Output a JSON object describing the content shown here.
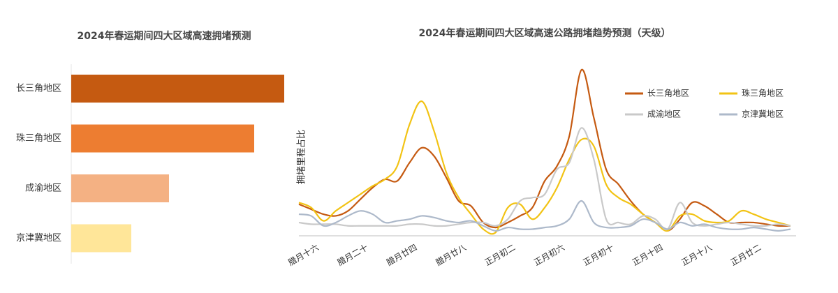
{
  "chart_data": [
    {
      "type": "bar",
      "orientation": "horizontal",
      "title": "2024年春运期间四大区域高速拥堵预测",
      "categories": [
        "长三角地区",
        "珠三角地区",
        "成渝地区",
        "京津冀地区"
      ],
      "values": [
        305,
        262,
        140,
        86
      ],
      "colors": [
        "#c55a11",
        "#ed7d31",
        "#f4b183",
        "#ffe699"
      ]
    },
    {
      "type": "line",
      "title": "2024年春运期间四大区域高速公路拥堵趋势预测（天级）",
      "y_label": "拥堵里程占比",
      "categories": [
        null,
        "腊月十六",
        null,
        null,
        null,
        "腊月二十",
        null,
        null,
        null,
        "腊月廿四",
        null,
        null,
        null,
        "腊月廿八",
        null,
        null,
        null,
        "正月初二",
        null,
        null,
        null,
        "正月初六",
        null,
        null,
        null,
        "正月初十",
        null,
        null,
        null,
        "正月十四",
        null,
        null,
        null,
        "正月十八",
        null,
        null,
        null,
        "正月廿二",
        null,
        null,
        null
      ],
      "legend": "top-right",
      "series": [
        {
          "name": "长三角地区",
          "color": "#c55a11",
          "values": [
            19,
            16,
            13,
            12,
            15,
            22,
            29,
            34,
            33,
            44,
            53,
            48,
            35,
            21,
            18,
            8,
            5,
            8,
            12,
            17,
            33,
            42,
            60,
            100,
            71,
            40,
            31,
            21,
            13,
            8,
            3,
            10,
            20,
            18,
            13,
            8,
            8,
            8,
            7,
            6,
            6
          ]
        },
        {
          "name": "珠三角地区",
          "color": "#f2c314",
          "values": [
            20,
            17,
            9,
            15,
            20,
            25,
            30,
            34,
            42,
            67,
            81,
            63,
            38,
            23,
            13,
            4,
            2,
            17,
            19,
            10,
            17,
            29,
            46,
            58,
            54,
            31,
            23,
            19,
            13,
            8,
            3,
            12,
            13,
            9,
            8,
            9,
            15,
            13,
            10,
            8,
            6
          ]
        },
        {
          "name": "成渝地区",
          "color": "#c9c9c9",
          "values": [
            8,
            7,
            7,
            7,
            6,
            6,
            6,
            6,
            6,
            7,
            7,
            6,
            6,
            7,
            8,
            8,
            6,
            10,
            21,
            23,
            25,
            40,
            44,
            65,
            46,
            10,
            8,
            7,
            12,
            10,
            4,
            20,
            8,
            6,
            7,
            8,
            7,
            6,
            6,
            7,
            6
          ]
        },
        {
          "name": "京津冀地区",
          "color": "#adb9ca",
          "values": [
            13,
            12,
            6,
            8,
            12,
            15,
            13,
            8,
            9,
            10,
            12,
            11,
            9,
            8,
            9,
            6,
            3,
            5,
            4,
            4,
            5,
            6,
            10,
            21,
            8,
            5,
            5,
            6,
            10,
            8,
            4,
            8,
            6,
            7,
            5,
            4,
            4,
            5,
            4,
            3,
            4
          ]
        }
      ]
    }
  ]
}
